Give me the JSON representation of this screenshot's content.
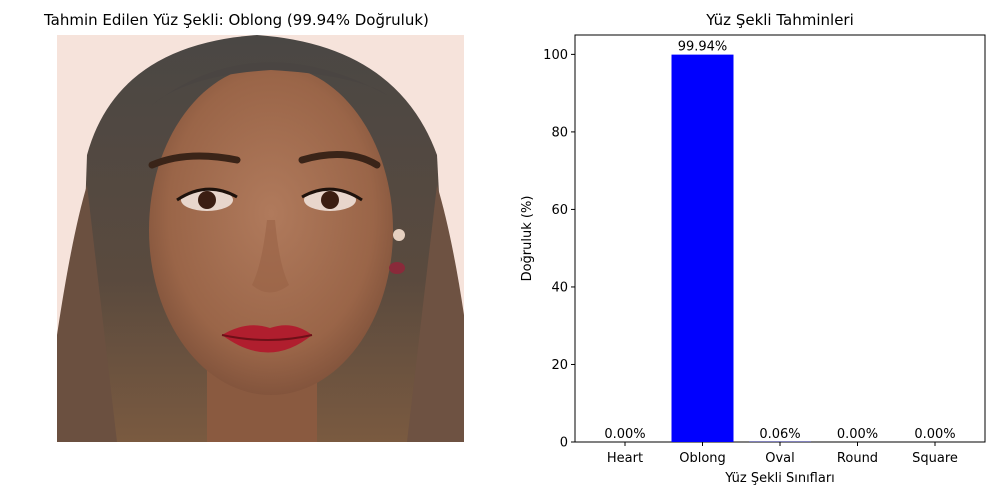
{
  "left_panel": {
    "title": "Tahmin Edilen Yüz Şekli: Oblong (99.94% Doğruluk)",
    "image_subject": "portrait-face-photo"
  },
  "chart_data": {
    "type": "bar",
    "title": "Yüz Şekli Tahminleri",
    "xlabel": "Yüz Şekli Sınıfları",
    "ylabel": "Doğruluk (%)",
    "categories": [
      "Heart",
      "Oblong",
      "Oval",
      "Round",
      "Square"
    ],
    "values": [
      0.0,
      99.94,
      0.06,
      0.0,
      0.0
    ],
    "data_labels": [
      "0.00%",
      "99.94%",
      "0.06%",
      "0.00%",
      "0.00%"
    ],
    "ylim": [
      0,
      105
    ],
    "yticks": [
      0,
      20,
      40,
      60,
      80,
      100
    ],
    "bar_color": "#0000ff",
    "grid": false
  }
}
